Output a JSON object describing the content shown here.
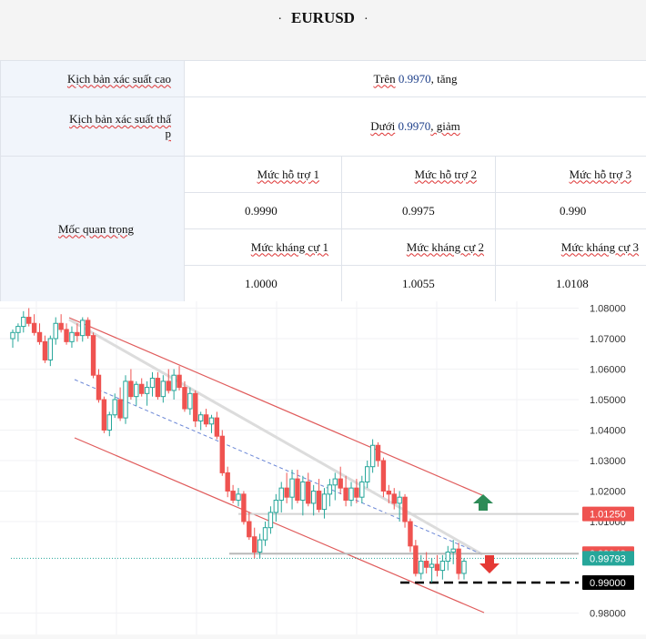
{
  "header": {
    "title": "EURUSD",
    "bullet_left": "·",
    "bullet_right": "·"
  },
  "scenarios": {
    "high": {
      "label": "Kịch bản xác suất cao",
      "prefix": "Trên",
      "level": "0.9970",
      "suffix": ", tăng"
    },
    "low": {
      "label": "Kịch bản xác suất thấp",
      "label_line1": "Kịch bản xác suất thấ",
      "label_line2": "p",
      "prefix": "Dưới",
      "level": "0.9970",
      "suffix": ", giảm"
    }
  },
  "key_levels": {
    "label": "Mốc quan trọng",
    "support_headers": [
      "Mức hỗ trợ 1",
      "Mức hỗ trợ 2",
      "Mức hỗ trợ 3"
    ],
    "support_values": [
      "0.9990",
      "0.9975",
      "0.990"
    ],
    "resistance_headers": [
      "Mức kháng cự 1",
      "Mức kháng cự 2",
      "Mức kháng cự 3"
    ],
    "resistance_values": [
      "1.0000",
      "1.0055",
      "1.0108"
    ]
  },
  "chart_data": {
    "type": "candlestick",
    "symbol": "EURUSD",
    "ylim": [
      0.978,
      1.08
    ],
    "y_ticks": [
      0.98,
      1.01,
      1.02,
      1.03,
      1.04,
      1.05,
      1.06,
      1.07,
      1.08
    ],
    "y_tick_labels": [
      "0.98000",
      "1.01000",
      "1.02000",
      "1.03000",
      "1.04000",
      "1.05000",
      "1.06000",
      "1.07000",
      "1.08000"
    ],
    "price_tags": [
      {
        "label": "1.01250",
        "value": 1.0125,
        "color": "#ef5350"
      },
      {
        "label": "0.99948",
        "value": 0.99948,
        "color": "#ef5350"
      },
      {
        "label": "0.99793",
        "value": 0.99793,
        "color": "#26a69a"
      },
      {
        "label": "0.99000",
        "value": 0.99,
        "color": "#000000"
      }
    ],
    "horizontal_levels": [
      1.0125,
      0.99948,
      0.99
    ],
    "arrows": [
      {
        "direction": "up",
        "color": "#2e8b57"
      },
      {
        "direction": "down",
        "color": "#e53935"
      }
    ],
    "candles_ohlc": [
      [
        1.07,
        1.073,
        1.067,
        1.072
      ],
      [
        1.072,
        1.075,
        1.069,
        1.074
      ],
      [
        1.074,
        1.079,
        1.072,
        1.077
      ],
      [
        1.077,
        1.08,
        1.074,
        1.075
      ],
      [
        1.075,
        1.078,
        1.071,
        1.072
      ],
      [
        1.072,
        1.075,
        1.068,
        1.069
      ],
      [
        1.069,
        1.071,
        1.062,
        1.063
      ],
      [
        1.063,
        1.071,
        1.061,
        1.07
      ],
      [
        1.07,
        1.077,
        1.068,
        1.075
      ],
      [
        1.075,
        1.078,
        1.072,
        1.073
      ],
      [
        1.073,
        1.075,
        1.068,
        1.069
      ],
      [
        1.069,
        1.074,
        1.067,
        1.072
      ],
      [
        1.072,
        1.075,
        1.069,
        1.071
      ],
      [
        1.071,
        1.077,
        1.069,
        1.076
      ],
      [
        1.076,
        1.077,
        1.07,
        1.071
      ],
      [
        1.071,
        1.072,
        1.057,
        1.058
      ],
      [
        1.058,
        1.06,
        1.049,
        1.05
      ],
      [
        1.05,
        1.051,
        1.039,
        1.04
      ],
      [
        1.04,
        1.046,
        1.038,
        1.045
      ],
      [
        1.045,
        1.052,
        1.044,
        1.05
      ],
      [
        1.05,
        1.054,
        1.043,
        1.044
      ],
      [
        1.044,
        1.058,
        1.042,
        1.056
      ],
      [
        1.056,
        1.06,
        1.05,
        1.051
      ],
      [
        1.051,
        1.056,
        1.048,
        1.055
      ],
      [
        1.055,
        1.057,
        1.051,
        1.052
      ],
      [
        1.052,
        1.056,
        1.048,
        1.054
      ],
      [
        1.054,
        1.059,
        1.051,
        1.057
      ],
      [
        1.057,
        1.059,
        1.05,
        1.051
      ],
      [
        1.051,
        1.058,
        1.049,
        1.056
      ],
      [
        1.056,
        1.06,
        1.052,
        1.053
      ],
      [
        1.053,
        1.06,
        1.05,
        1.058
      ],
      [
        1.058,
        1.061,
        1.053,
        1.054
      ],
      [
        1.054,
        1.056,
        1.046,
        1.047
      ],
      [
        1.047,
        1.054,
        1.045,
        1.052
      ],
      [
        1.052,
        1.053,
        1.041,
        1.043
      ],
      [
        1.043,
        1.046,
        1.04,
        1.045
      ],
      [
        1.045,
        1.047,
        1.041,
        1.042
      ],
      [
        1.042,
        1.045,
        1.039,
        1.044
      ],
      [
        1.044,
        1.046,
        1.037,
        1.038
      ],
      [
        1.038,
        1.04,
        1.025,
        1.026
      ],
      [
        1.026,
        1.028,
        1.018,
        1.02
      ],
      [
        1.02,
        1.022,
        1.016,
        1.017
      ],
      [
        1.017,
        1.021,
        1.015,
        1.019
      ],
      [
        1.019,
        1.02,
        1.009,
        1.01
      ],
      [
        1.01,
        1.013,
        1.004,
        1.005
      ],
      [
        1.005,
        1.008,
        0.998,
        1.0
      ],
      [
        1.0,
        1.006,
        0.998,
        1.004
      ],
      [
        1.004,
        1.01,
        1.002,
        1.008
      ],
      [
        1.008,
        1.015,
        1.006,
        1.013
      ],
      [
        1.013,
        1.019,
        1.01,
        1.017
      ],
      [
        1.017,
        1.023,
        1.013,
        1.021
      ],
      [
        1.021,
        1.026,
        1.016,
        1.018
      ],
      [
        1.018,
        1.027,
        1.014,
        1.024
      ],
      [
        1.024,
        1.027,
        1.016,
        1.017
      ],
      [
        1.017,
        1.025,
        1.012,
        1.023
      ],
      [
        1.023,
        1.026,
        1.015,
        1.016
      ],
      [
        1.016,
        1.022,
        1.012,
        1.02
      ],
      [
        1.02,
        1.024,
        1.013,
        1.014
      ],
      [
        1.014,
        1.021,
        1.011,
        1.019
      ],
      [
        1.019,
        1.024,
        1.015,
        1.022
      ],
      [
        1.022,
        1.026,
        1.017,
        1.024
      ],
      [
        1.024,
        1.028,
        1.019,
        1.021
      ],
      [
        1.021,
        1.025,
        1.015,
        1.017
      ],
      [
        1.017,
        1.023,
        1.015,
        1.021
      ],
      [
        1.021,
        1.024,
        1.016,
        1.018
      ],
      [
        1.018,
        1.025,
        1.016,
        1.023
      ],
      [
        1.023,
        1.03,
        1.021,
        1.028
      ],
      [
        1.028,
        1.037,
        1.026,
        1.035
      ],
      [
        1.035,
        1.036,
        1.028,
        1.03
      ],
      [
        1.03,
        1.031,
        1.018,
        1.02
      ],
      [
        1.02,
        1.022,
        1.016,
        1.019
      ],
      [
        1.019,
        1.021,
        1.014,
        1.016
      ],
      [
        1.016,
        1.02,
        1.01,
        1.018
      ],
      [
        1.018,
        1.019,
        1.008,
        1.01
      ],
      [
        1.01,
        1.011,
        1.0,
        1.002
      ],
      [
        1.002,
        1.004,
        0.992,
        0.993
      ],
      [
        0.993,
        0.999,
        0.991,
        0.997
      ],
      [
        0.997,
        1.0,
        0.993,
        0.995
      ],
      [
        0.995,
        0.998,
        0.99,
        0.996
      ],
      [
        0.996,
        0.999,
        0.992,
        0.994
      ],
      [
        0.994,
        0.999,
        0.991,
        0.997
      ],
      [
        0.997,
        1.002,
        0.994,
        1.0
      ],
      [
        1.0,
        1.004,
        0.996,
        1.001
      ],
      [
        1.001,
        1.003,
        0.991,
        0.993
      ],
      [
        0.993,
        0.998,
        0.991,
        0.997
      ]
    ]
  }
}
